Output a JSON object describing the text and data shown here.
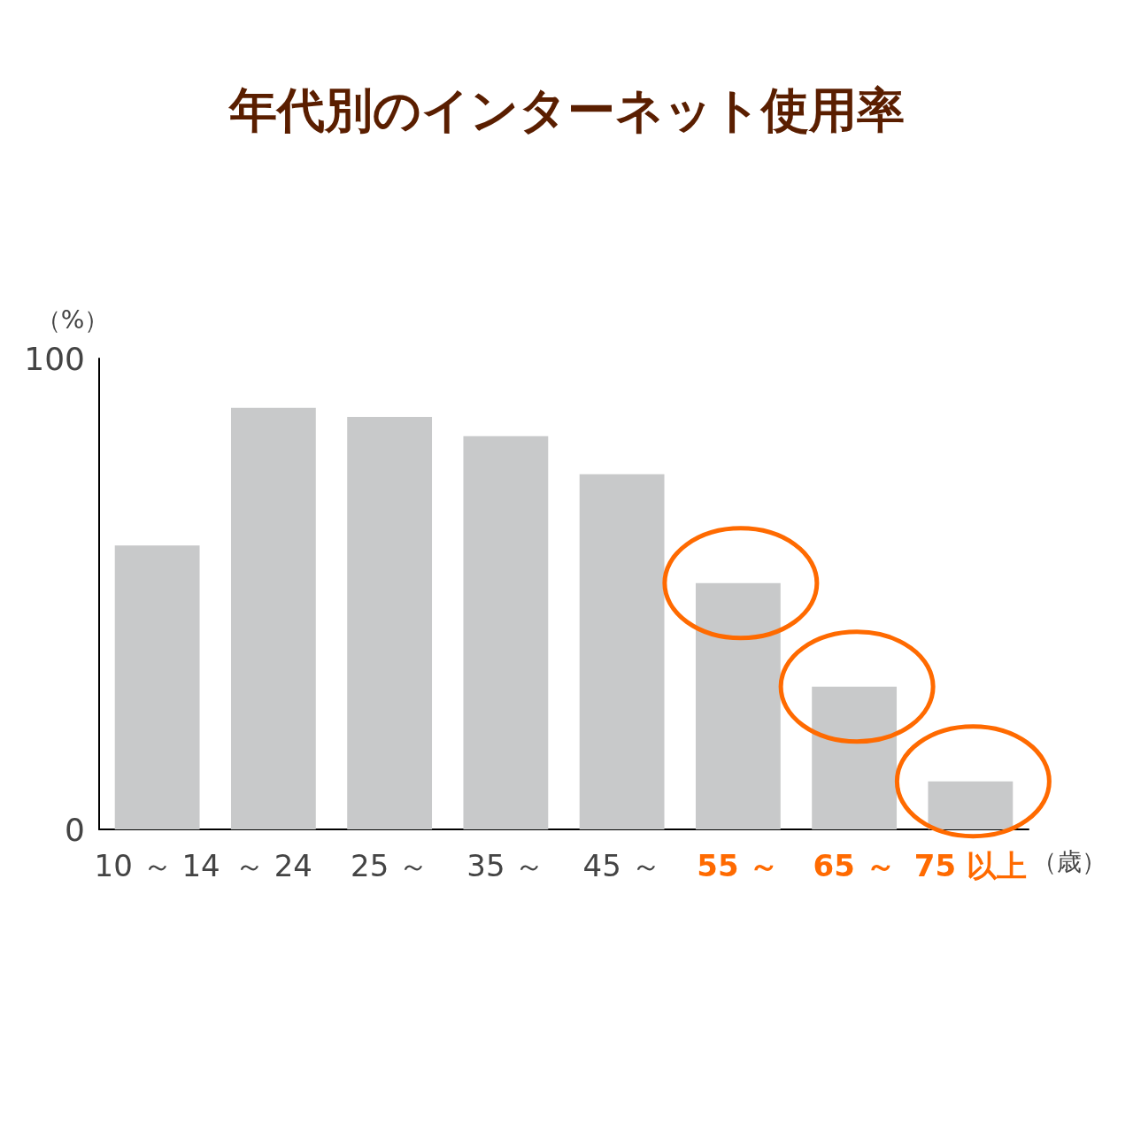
{
  "chart_data": {
    "type": "bar",
    "title": "年代別のインターネット使用率",
    "ylabel": "（%）",
    "xlabel": "（歳）",
    "categories": [
      "10 ～ 14",
      "～ 24",
      "25 ～",
      "35 ～",
      "45 ～",
      "55 ～",
      "65 ～",
      "75 以上"
    ],
    "values": [
      60.3,
      89.5,
      87.6,
      83.5,
      75.4,
      52.3,
      30.3,
      10.2
    ],
    "color": "#c8c9ca",
    "ylim": [
      0,
      100
    ],
    "yticks": [
      0,
      100
    ],
    "grid": false
  }
}
